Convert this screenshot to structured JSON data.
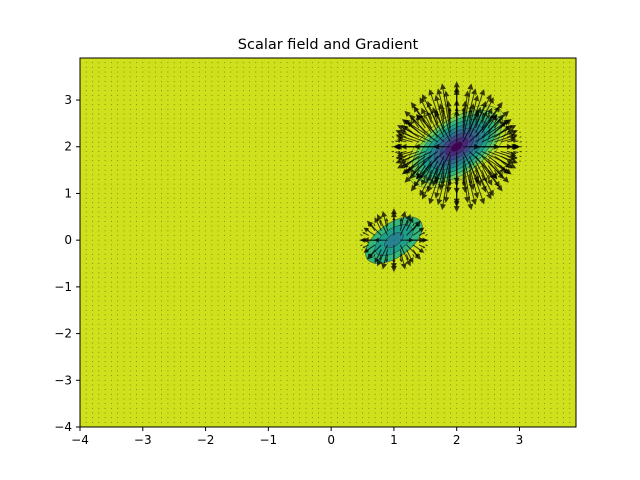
{
  "chart_data": {
    "type": "heatmap",
    "subtype": "filled contour with gradient quiver overlay",
    "title": "Scalar field and Gradient",
    "xlabel": "",
    "ylabel": "",
    "xlim": [
      -4,
      3.9
    ],
    "ylim": [
      -4,
      3.9
    ],
    "x_ticks": [
      -4,
      -3,
      -2,
      -1,
      0,
      1,
      2,
      3
    ],
    "y_ticks": [
      -4,
      -3,
      -2,
      -1,
      0,
      1,
      2,
      3
    ],
    "x_tick_labels": [
      "−4",
      "−3",
      "−2",
      "−1",
      "0",
      "1",
      "2",
      "3"
    ],
    "y_tick_labels": [
      "−4",
      "−3",
      "−2",
      "−1",
      "0",
      "1",
      "2",
      "3"
    ],
    "grid": false,
    "colormap": "viridis",
    "background_color": "#cfe11c",
    "arrow_color": "#000000",
    "quiver_spacing": 0.1,
    "features": [
      {
        "center": [
          2,
          2
        ],
        "kind": "deep minimum",
        "sx": 0.35,
        "sy": 0.25,
        "amplitude": 1.0
      },
      {
        "center": [
          1,
          0
        ],
        "kind": "shallow minimum",
        "sx": 0.2,
        "sy": 0.14,
        "amplitude": 0.28
      }
    ]
  }
}
